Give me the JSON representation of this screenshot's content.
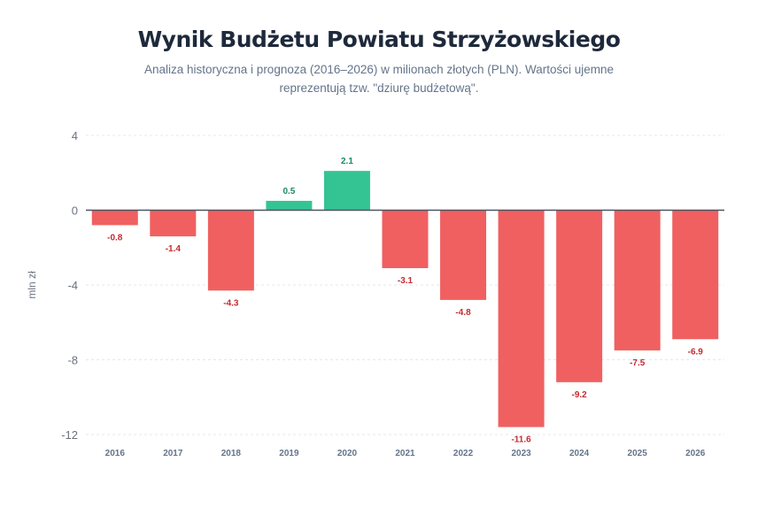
{
  "chart_data": {
    "type": "bar",
    "title": "Wynik Budżetu Powiatu Strzyżowskiego",
    "subtitle": "Analiza historyczna i prognoza (2016–2026) w milionach złotych (PLN). Wartości ujemne reprezentują tzw. \"dziurę budżetową\".",
    "ylabel": "mln zł",
    "xlabel": "",
    "ylim": [
      -12,
      4
    ],
    "yticks": [
      4,
      0,
      -4,
      -8,
      -12
    ],
    "categories": [
      "2016",
      "2017",
      "2018",
      "2019",
      "2020",
      "2021",
      "2022",
      "2023",
      "2024",
      "2025",
      "2026"
    ],
    "values": [
      -0.8,
      -1.4,
      -4.3,
      0.5,
      2.1,
      -3.1,
      -4.8,
      -11.6,
      -9.2,
      -7.5,
      -6.9
    ],
    "grid": "horizontal dashed",
    "colors": {
      "positive": "#34c494",
      "negative": "#f06060",
      "positive_label": "#1b8a5f",
      "negative_label": "#c42a30"
    }
  }
}
